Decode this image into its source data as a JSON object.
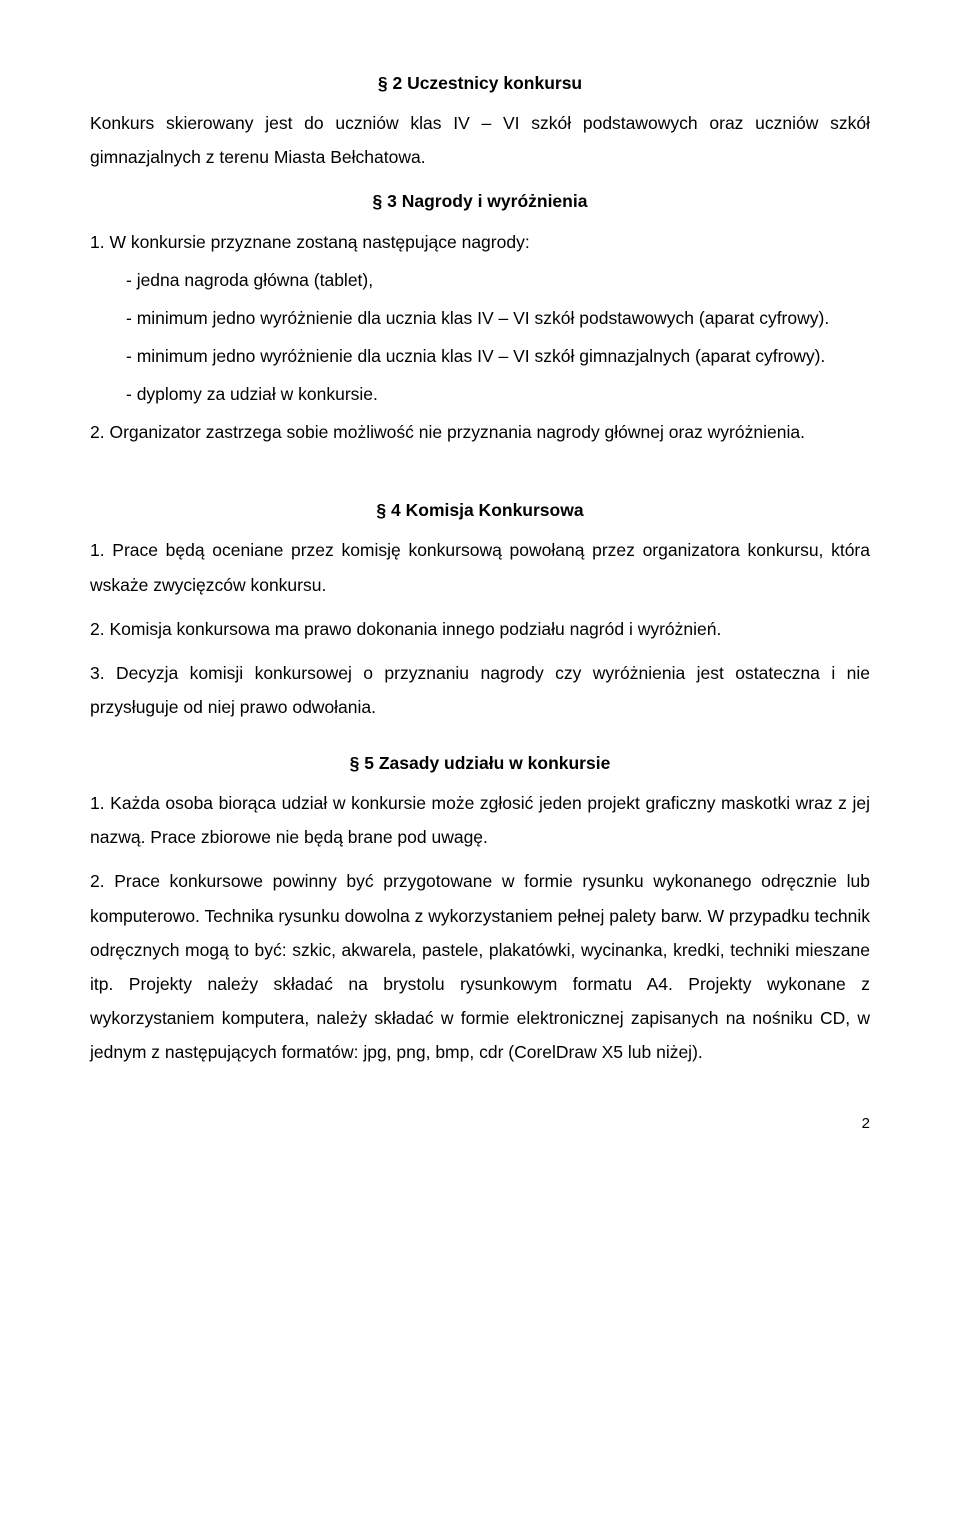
{
  "doc": {
    "s2": {
      "heading": "§ 2 Uczestnicy konkursu",
      "p1": "Konkurs skierowany jest do uczniów klas IV – VI szkół podstawowych oraz uczniów szkół gimnazjalnych z terenu Miasta Bełchatowa."
    },
    "s3": {
      "heading": "§ 3 Nagrody i wyróżnienia",
      "p1": "1. W konkursie przyznane zostaną następujące nagrody:",
      "li1": "- jedna nagroda główna (tablet),",
      "li2": "- minimum jedno wyróżnienie dla ucznia klas IV – VI szkół podstawowych (aparat cyfrowy).",
      "li3": "- minimum jedno wyróżnienie dla ucznia klas IV – VI szkół gimnazjalnych (aparat cyfrowy).",
      "li4": "- dyplomy za udział w konkursie.",
      "p2": "2. Organizator zastrzega sobie możliwość nie przyznania nagrody głównej oraz wyróżnienia."
    },
    "s4": {
      "heading": "§ 4 Komisja Konkursowa",
      "p1": "1. Prace będą oceniane przez komisję konkursową powołaną przez organizatora konkursu, która wskaże zwycięzców konkursu.",
      "p2": "2. Komisja konkursowa ma prawo dokonania innego podziału nagród i wyróżnień.",
      "p3": "3. Decyzja komisji konkursowej o przyznaniu nagrody czy wyróżnienia jest ostateczna i nie przysługuje od niej prawo odwołania."
    },
    "s5": {
      "heading": "§ 5 Zasady udziału w konkursie",
      "p1": "1. Każda osoba biorąca udział w konkursie może zgłosić jeden projekt graficzny maskotki wraz z jej nazwą. Prace zbiorowe nie będą brane pod uwagę.",
      "p2": "2. Prace konkursowe powinny być przygotowane w formie rysunku wykonanego odręcznie lub komputerowo. Technika rysunku dowolna z wykorzystaniem pełnej palety barw. W przypadku technik odręcznych mogą to być: szkic, akwarela, pastele, plakatówki, wycinanka, kredki, techniki mieszane itp. Projekty należy składać na brystolu rysunkowym formatu A4. Projekty wykonane z wykorzystaniem komputera, należy składać w formie elektronicznej zapisanych na nośniku CD, w jednym z następujących formatów: jpg, png, bmp, cdr (CorelDraw X5 lub niżej)."
    },
    "pageNumber": "2"
  }
}
